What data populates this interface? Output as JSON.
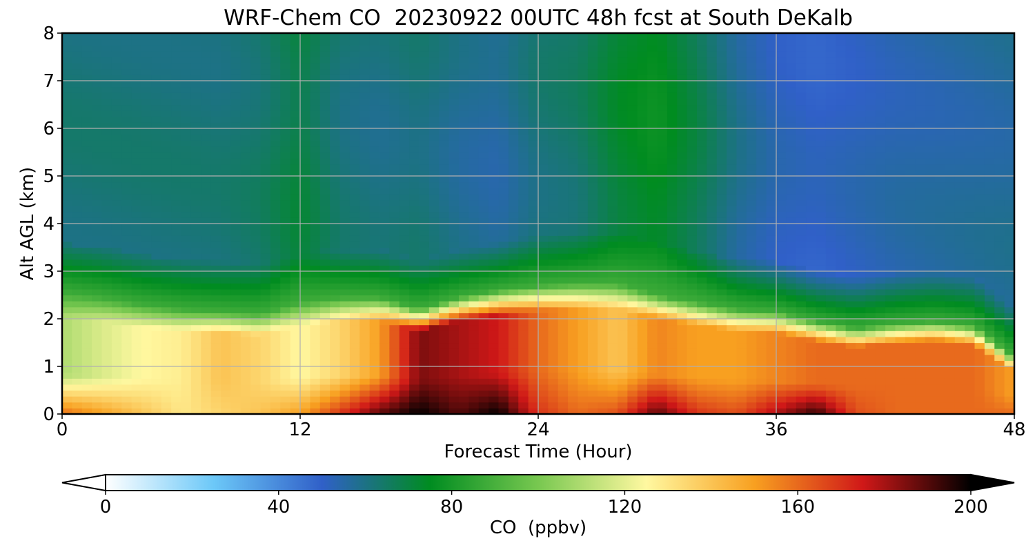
{
  "chart_data": {
    "type": "heatmap",
    "title": "WRF-Chem CO  20230922 00UTC 48h fcst at South DeKalb",
    "xlabel": "Forecast Time (Hour)",
    "ylabel": "Alt AGL (km)",
    "xlim": [
      0,
      48
    ],
    "ylim": [
      0,
      8
    ],
    "x_ticks": [
      "0",
      "12",
      "24",
      "36",
      "48"
    ],
    "y_ticks": [
      "0",
      "1",
      "2",
      "3",
      "4",
      "5",
      "6",
      "7",
      "8"
    ],
    "grid": true,
    "colorbar": {
      "label": "CO  (ppbv)",
      "range": [
        0,
        200
      ],
      "ticks": [
        "0",
        "40",
        "80",
        "120",
        "160",
        "200"
      ],
      "extend": "both",
      "colors": [
        "#ffffff",
        "#6cc8f8",
        "#3060c8",
        "#008c20",
        "#78c850",
        "#fff8a0",
        "#f8a020",
        "#d01818",
        "#000000"
      ]
    },
    "x": [
      0,
      2,
      4,
      6,
      8,
      10,
      12,
      14,
      16,
      18,
      20,
      22,
      24,
      26,
      28,
      30,
      32,
      34,
      36,
      38,
      40,
      42,
      44,
      46,
      48
    ],
    "mixing_layer_top_km": [
      2.4,
      2.3,
      2.15,
      2.05,
      2.0,
      1.95,
      2.2,
      2.3,
      2.3,
      2.05,
      2.3,
      2.45,
      2.55,
      2.6,
      2.6,
      2.35,
      2.2,
      2.05,
      2.0,
      1.8,
      1.65,
      1.75,
      1.8,
      1.7,
      1.05
    ],
    "surface_co_ppbv": [
      160,
      150,
      140,
      130,
      135,
      140,
      150,
      170,
      190,
      200,
      190,
      200,
      170,
      160,
      165,
      190,
      170,
      165,
      180,
      195,
      165,
      160,
      160,
      160,
      160
    ],
    "mid_boundary_layer_co_ppbv": [
      110,
      118,
      125,
      128,
      140,
      135,
      125,
      135,
      150,
      185,
      180,
      175,
      160,
      150,
      140,
      155,
      150,
      150,
      155,
      160,
      160,
      160,
      160,
      160,
      150
    ],
    "free_troposphere_co_ppbv": [
      62,
      62,
      62,
      62,
      62,
      64,
      70,
      62,
      60,
      62,
      58,
      56,
      62,
      64,
      72,
      76,
      68,
      58,
      52,
      50,
      52,
      54,
      55,
      56,
      57
    ]
  }
}
